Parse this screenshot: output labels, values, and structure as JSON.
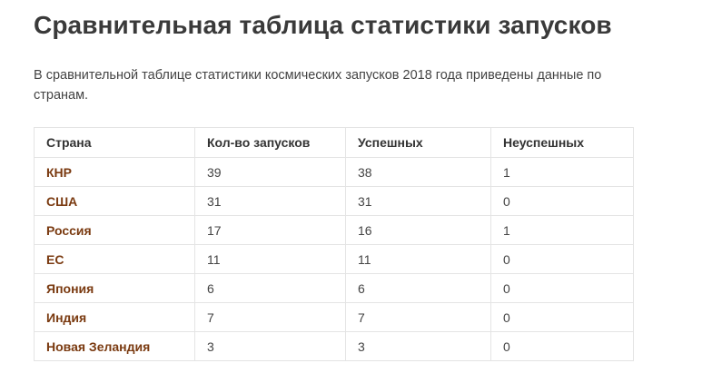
{
  "title": "Сравнительная таблица статистики запусков",
  "intro": "В сравнительной таблице статистики космических запусков 2018 года приведены данные по странам.",
  "colors": {
    "country_link": "#7a3a10",
    "text": "#444444",
    "border": "#e4e4e4"
  },
  "table": {
    "headers": [
      "Страна",
      "Кол-во запусков",
      "Успешных",
      "Неуспешных"
    ],
    "rows": [
      [
        "КНР",
        "39",
        "38",
        "1"
      ],
      [
        "США",
        "31",
        "31",
        "0"
      ],
      [
        "Россия",
        "17",
        "16",
        "1"
      ],
      [
        "ЕС",
        "11",
        "11",
        "0"
      ],
      [
        "Япония",
        "6",
        "6",
        "0"
      ],
      [
        "Индия",
        "7",
        "7",
        "0"
      ],
      [
        "Новая Зеландия",
        "3",
        "3",
        "0"
      ]
    ]
  }
}
